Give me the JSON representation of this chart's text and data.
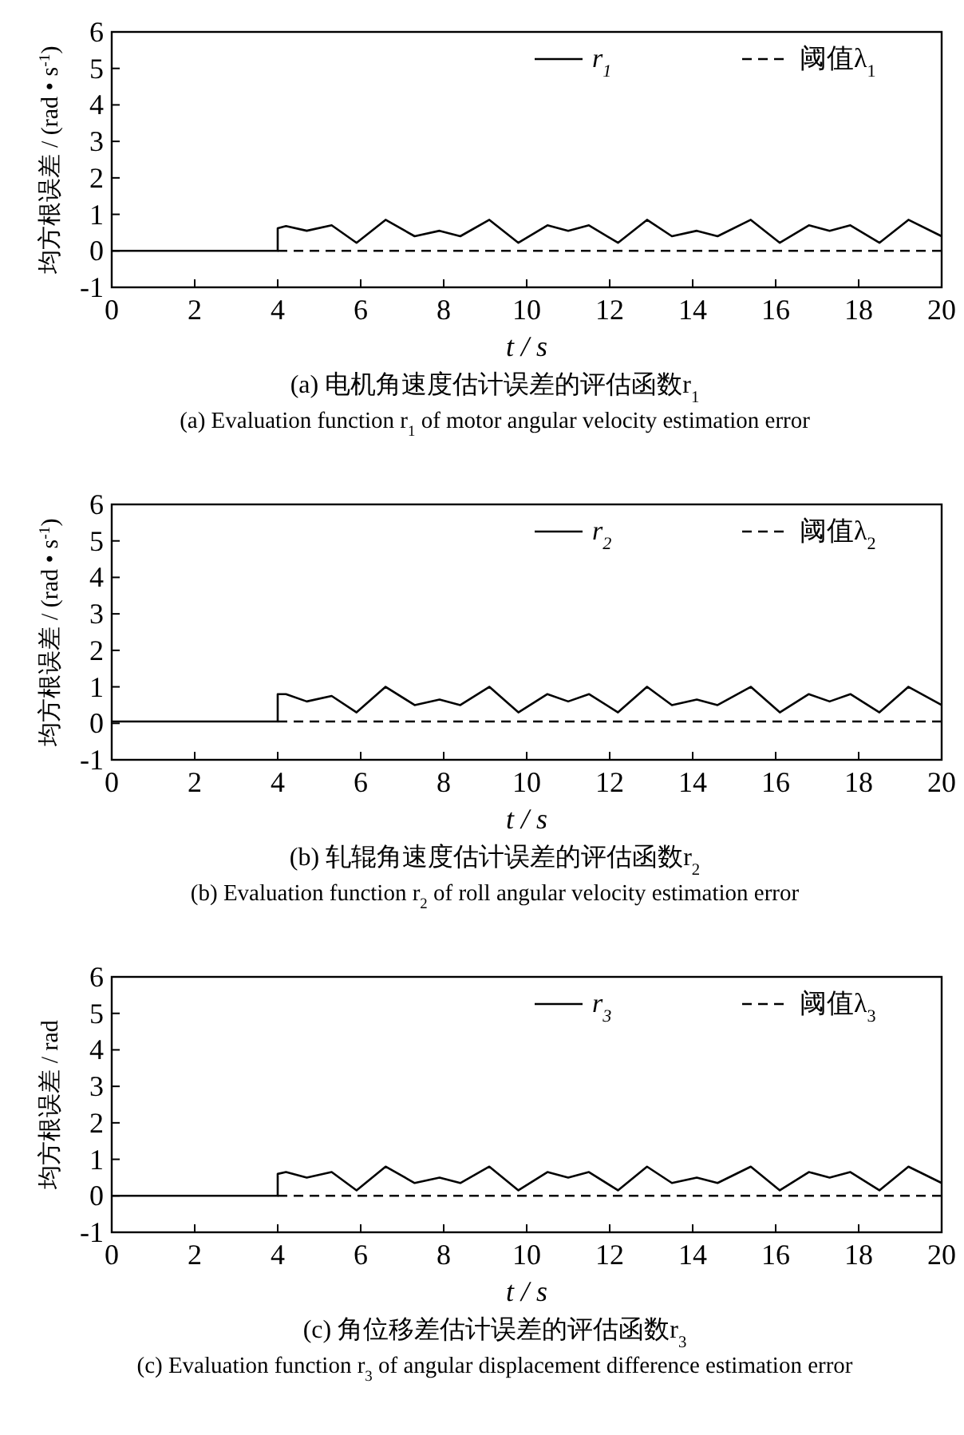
{
  "chart_data": [
    {
      "type": "line",
      "title": "(a)  电机角速度估计误差的评估函数r$_{1}$",
      "subtitle": "(a)  Evaluation function r$_{1}$ of motor angular velocity estimation error",
      "xlabel": "t / s",
      "ylabel": "均方根误差 / (rad • s$^{-1}$)",
      "xlim": [
        0,
        20
      ],
      "ylim": [
        -1,
        6
      ],
      "xticks": [
        0,
        2,
        4,
        6,
        8,
        10,
        12,
        14,
        16,
        18,
        20
      ],
      "yticks": [
        -1,
        0,
        1,
        2,
        3,
        4,
        5,
        6
      ],
      "legend": "top right",
      "grid": false,
      "series": [
        {
          "name": "r$_{1}$",
          "color": "#000000",
          "line_style": "solid",
          "x": [
            0,
            4,
            4,
            4.2,
            4.7,
            5.3,
            5.9,
            6.6,
            7.3,
            7.9,
            8.4,
            9.1,
            9.8,
            10.5,
            11.0,
            11.5,
            12.2,
            12.9,
            13.5,
            14.1,
            14.6,
            15.4,
            16.1,
            16.8,
            17.3,
            17.8,
            18.5,
            19.2,
            20
          ],
          "values": [
            0,
            0,
            0.62,
            0.68,
            0.55,
            0.7,
            0.22,
            0.85,
            0.4,
            0.55,
            0.4,
            0.85,
            0.22,
            0.7,
            0.55,
            0.7,
            0.22,
            0.85,
            0.4,
            0.55,
            0.4,
            0.85,
            0.22,
            0.7,
            0.55,
            0.7,
            0.22,
            0.85,
            0.4
          ]
        },
        {
          "name": "阈值λ$_{1}$",
          "color": "#000000",
          "line_style": "dashed",
          "x": [
            4,
            20
          ],
          "values": [
            0,
            0
          ]
        }
      ]
    },
    {
      "type": "line",
      "title": "(b)  轧辊角速度估计误差的评估函数r$_{2}$",
      "subtitle": "(b)  Evaluation function r$_{2}$ of roll angular velocity estimation error",
      "xlabel": "t / s",
      "ylabel": "均方根误差 / (rad • s$^{-1}$)",
      "xlim": [
        0,
        20
      ],
      "ylim": [
        -1,
        6
      ],
      "xticks": [
        0,
        2,
        4,
        6,
        8,
        10,
        12,
        14,
        16,
        18,
        20
      ],
      "yticks": [
        -1,
        0,
        1,
        2,
        3,
        4,
        5,
        6
      ],
      "legend": "top right",
      "grid": false,
      "series": [
        {
          "name": "r$_{2}$",
          "color": "#000000",
          "line_style": "solid",
          "x": [
            0,
            4,
            4,
            4.2,
            4.7,
            5.3,
            5.9,
            6.6,
            7.3,
            7.9,
            8.4,
            9.1,
            9.8,
            10.5,
            11.0,
            11.5,
            12.2,
            12.9,
            13.5,
            14.1,
            14.6,
            15.4,
            16.1,
            16.8,
            17.3,
            17.8,
            18.5,
            19.2,
            20
          ],
          "values": [
            0.05,
            0.05,
            0.8,
            0.8,
            0.6,
            0.75,
            0.3,
            1.0,
            0.5,
            0.65,
            0.5,
            1.0,
            0.3,
            0.8,
            0.6,
            0.8,
            0.3,
            1.0,
            0.5,
            0.65,
            0.5,
            1.0,
            0.3,
            0.8,
            0.6,
            0.8,
            0.3,
            1.0,
            0.5
          ]
        },
        {
          "name": "阈值λ$_{2}$",
          "color": "#000000",
          "line_style": "dashed",
          "x": [
            4,
            20
          ],
          "values": [
            0.05,
            0.05
          ]
        }
      ]
    },
    {
      "type": "line",
      "title": "(c)  角位移差估计误差的评估函数r$_{3}$",
      "subtitle": "(c)  Evaluation function r$_{3}$ of  angular displacement difference estimation error",
      "xlabel": "t / s",
      "ylabel": "均方根误差 / rad",
      "xlim": [
        0,
        20
      ],
      "ylim": [
        -1,
        6
      ],
      "xticks": [
        0,
        2,
        4,
        6,
        8,
        10,
        12,
        14,
        16,
        18,
        20
      ],
      "yticks": [
        -1,
        0,
        1,
        2,
        3,
        4,
        5,
        6
      ],
      "legend": "top right",
      "grid": false,
      "series": [
        {
          "name": "r$_{3}$",
          "color": "#000000",
          "line_style": "solid",
          "x": [
            0,
            4,
            4,
            4.2,
            4.7,
            5.3,
            5.9,
            6.6,
            7.3,
            7.9,
            8.4,
            9.1,
            9.8,
            10.5,
            11.0,
            11.5,
            12.2,
            12.9,
            13.5,
            14.1,
            14.6,
            15.4,
            16.1,
            16.8,
            17.3,
            17.8,
            18.5,
            19.2,
            20
          ],
          "values": [
            0,
            0,
            0.6,
            0.65,
            0.5,
            0.65,
            0.15,
            0.8,
            0.35,
            0.5,
            0.35,
            0.8,
            0.15,
            0.65,
            0.5,
            0.65,
            0.15,
            0.8,
            0.35,
            0.5,
            0.35,
            0.8,
            0.15,
            0.65,
            0.5,
            0.65,
            0.15,
            0.8,
            0.35
          ]
        },
        {
          "name": "阈值λ$_{3}$",
          "color": "#000000",
          "line_style": "dashed",
          "x": [
            4,
            20
          ],
          "values": [
            0,
            0
          ]
        }
      ]
    }
  ]
}
